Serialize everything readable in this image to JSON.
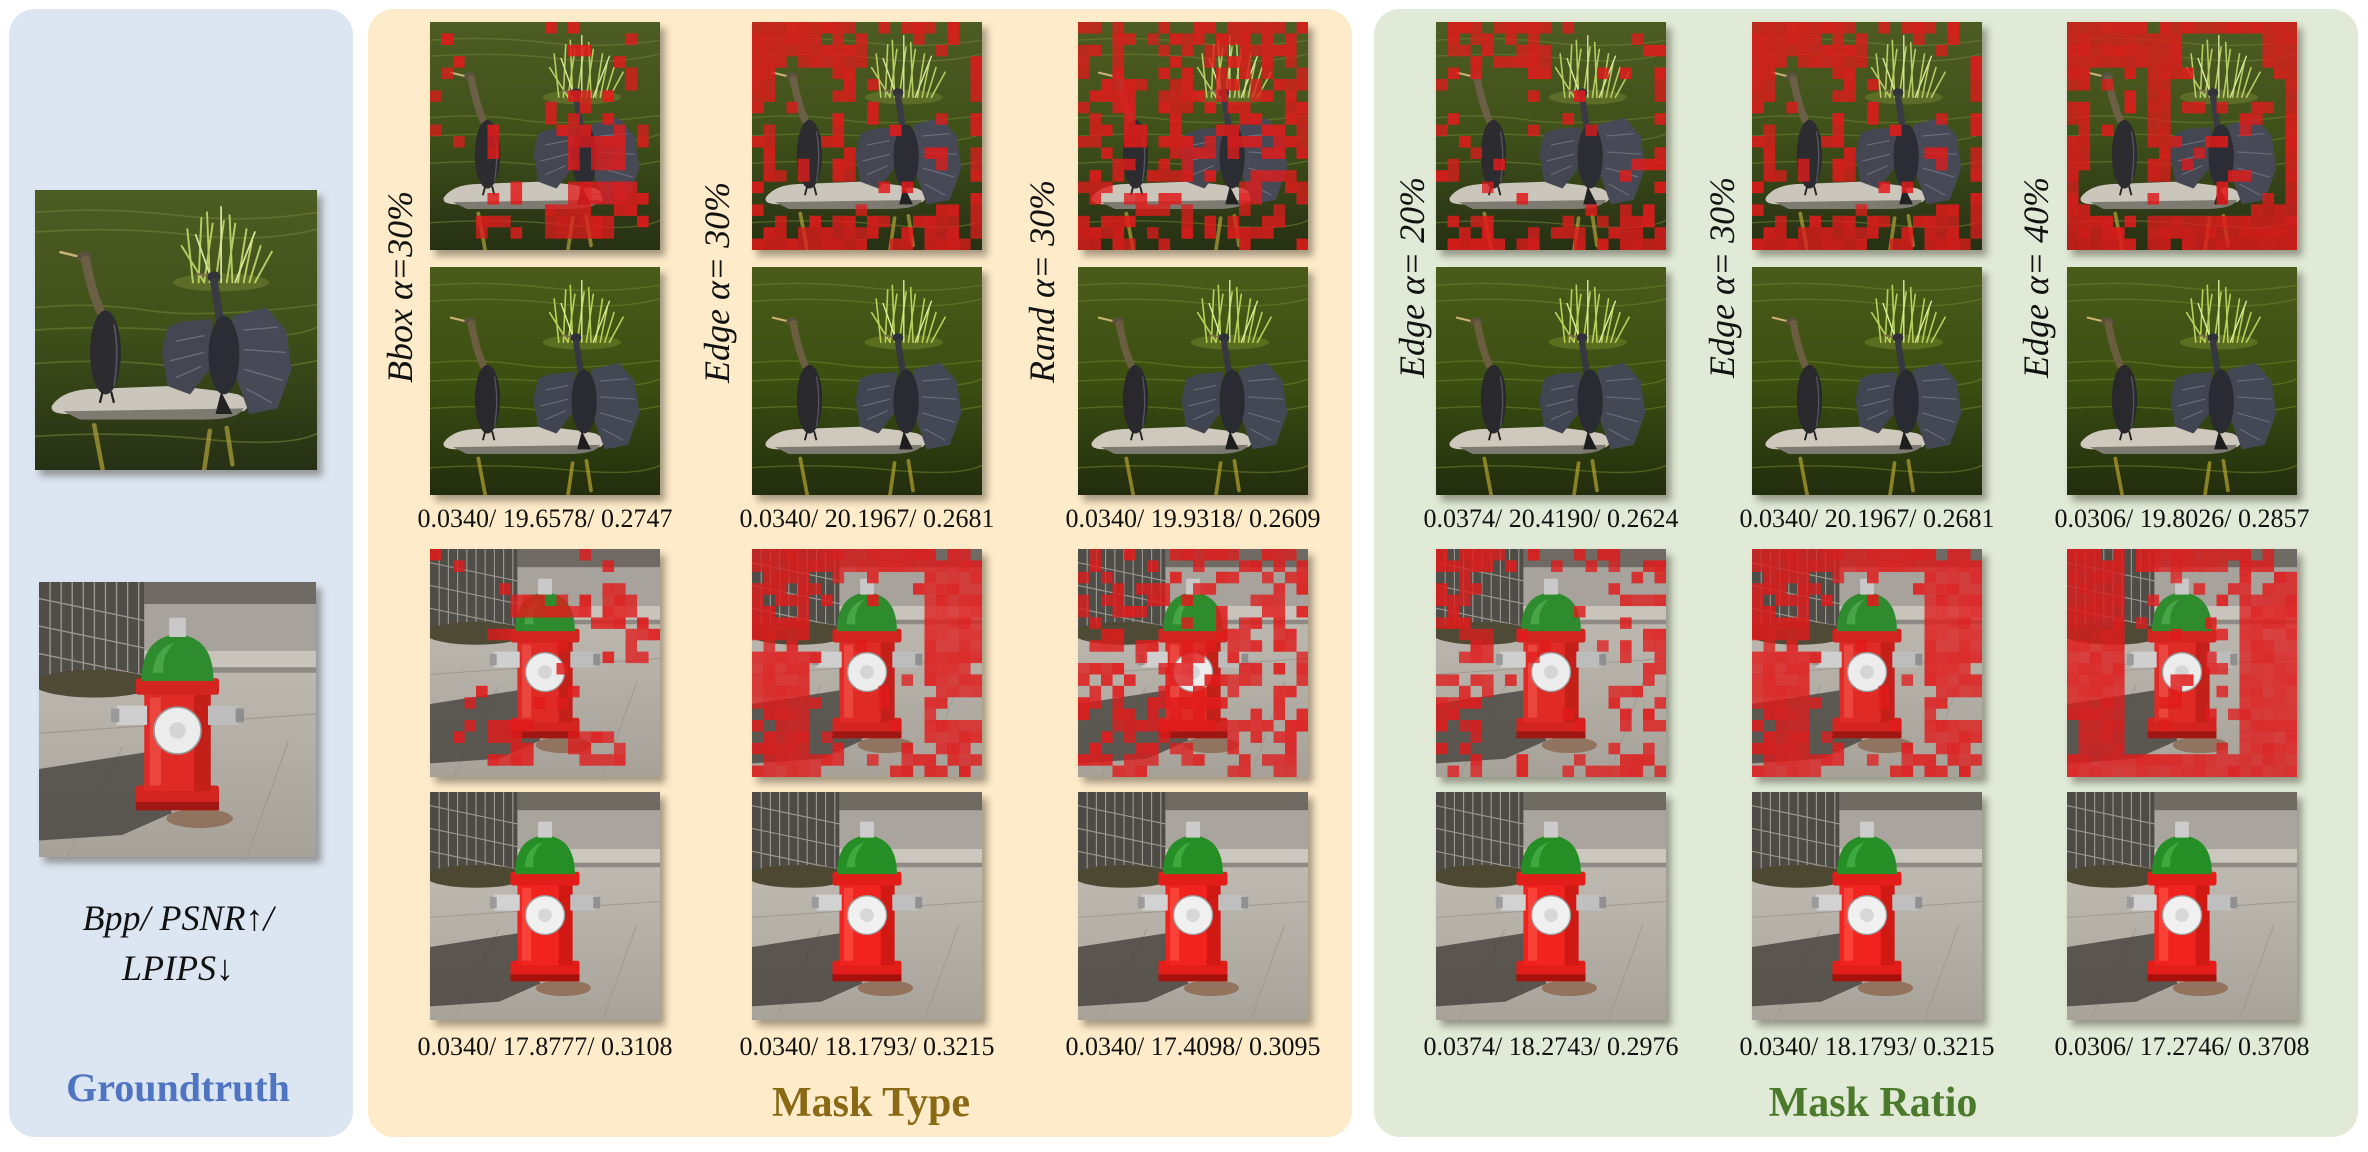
{
  "groundtruth": {
    "title": "Groundtruth",
    "metric_legend": "Bpp/ PSNR↑/ LPIPS↓"
  },
  "mask_type": {
    "title": "Mask Type",
    "columns": [
      {
        "label": "Bbox α=30%",
        "bird_metrics": "0.0340/ 19.6578/ 0.2747",
        "hydrant_metrics": "0.0340/ 17.8777/ 0.3108"
      },
      {
        "label": "Edge α= 30%",
        "bird_metrics": "0.0340/ 20.1967/ 0.2681",
        "hydrant_metrics": "0.0340/ 18.1793/ 0.3215"
      },
      {
        "label": "Rand α= 30%",
        "bird_metrics": "0.0340/ 19.9318/ 0.2609",
        "hydrant_metrics": "0.0340/ 17.4098/ 0.3095"
      }
    ]
  },
  "mask_ratio": {
    "title": "Mask Ratio",
    "columns": [
      {
        "label": "Edge α= 20%",
        "bird_metrics": "0.0374/ 20.4190/ 0.2624",
        "hydrant_metrics": "0.0374/ 18.2743/ 0.2976"
      },
      {
        "label": "Edge α= 30%",
        "bird_metrics": "0.0340/ 20.1967/ 0.2681",
        "hydrant_metrics": "0.0340/ 18.1793/ 0.3215"
      },
      {
        "label": "Edge α= 40%",
        "bird_metrics": "0.0306/ 19.8026/ 0.2857",
        "hydrant_metrics": "0.0306/ 17.2746/ 0.3708"
      }
    ]
  },
  "colors": {
    "groundtruth_panel": "#dce6f2",
    "mask_type_panel": "#fdebc9",
    "mask_ratio_panel": "#e0ead6",
    "groundtruth_title": "#4f74c1",
    "mask_type_title": "#8a6914",
    "mask_ratio_title": "#4b7a2c",
    "mask_red": "#e01b1b"
  }
}
